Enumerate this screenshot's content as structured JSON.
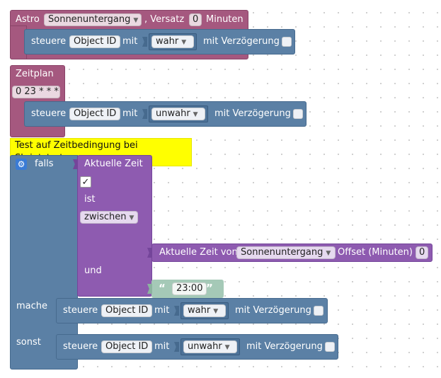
{
  "astro": {
    "label": "Astro",
    "event": "Sonnenuntergang",
    "offset_label": ", Versatz",
    "offset": "0",
    "unit": "Minuten"
  },
  "schedule": {
    "label": "Zeitplan",
    "cron": "0 23 * * *"
  },
  "control": {
    "steuere": "steuere",
    "object_id": "Object ID",
    "mit": "mit",
    "true_val": "wahr",
    "false_val": "unwahr",
    "delay": "mit Verzögerung"
  },
  "comment": "Test auf Zeitbedingung bei Skriptstart",
  "if_block": {
    "falls": "falls",
    "mache": "mache",
    "sonst": "sonst"
  },
  "time_compare": {
    "current_time": "Aktuelle Zeit",
    "check": "✓",
    "ist": "ist",
    "operator": "zwischen",
    "und": "und"
  },
  "astro_time": {
    "label": "Aktuelle Zeit von",
    "event": "Sonnenuntergang",
    "offset_label": "Offset (Minuten)",
    "offset": "0"
  },
  "time_text": "23:00",
  "colors": {
    "trigger": "#a5587f",
    "control": "#5b80a5",
    "time": "#8e5bb0",
    "text": "#a5c9b7",
    "comment": "#ffff00"
  }
}
